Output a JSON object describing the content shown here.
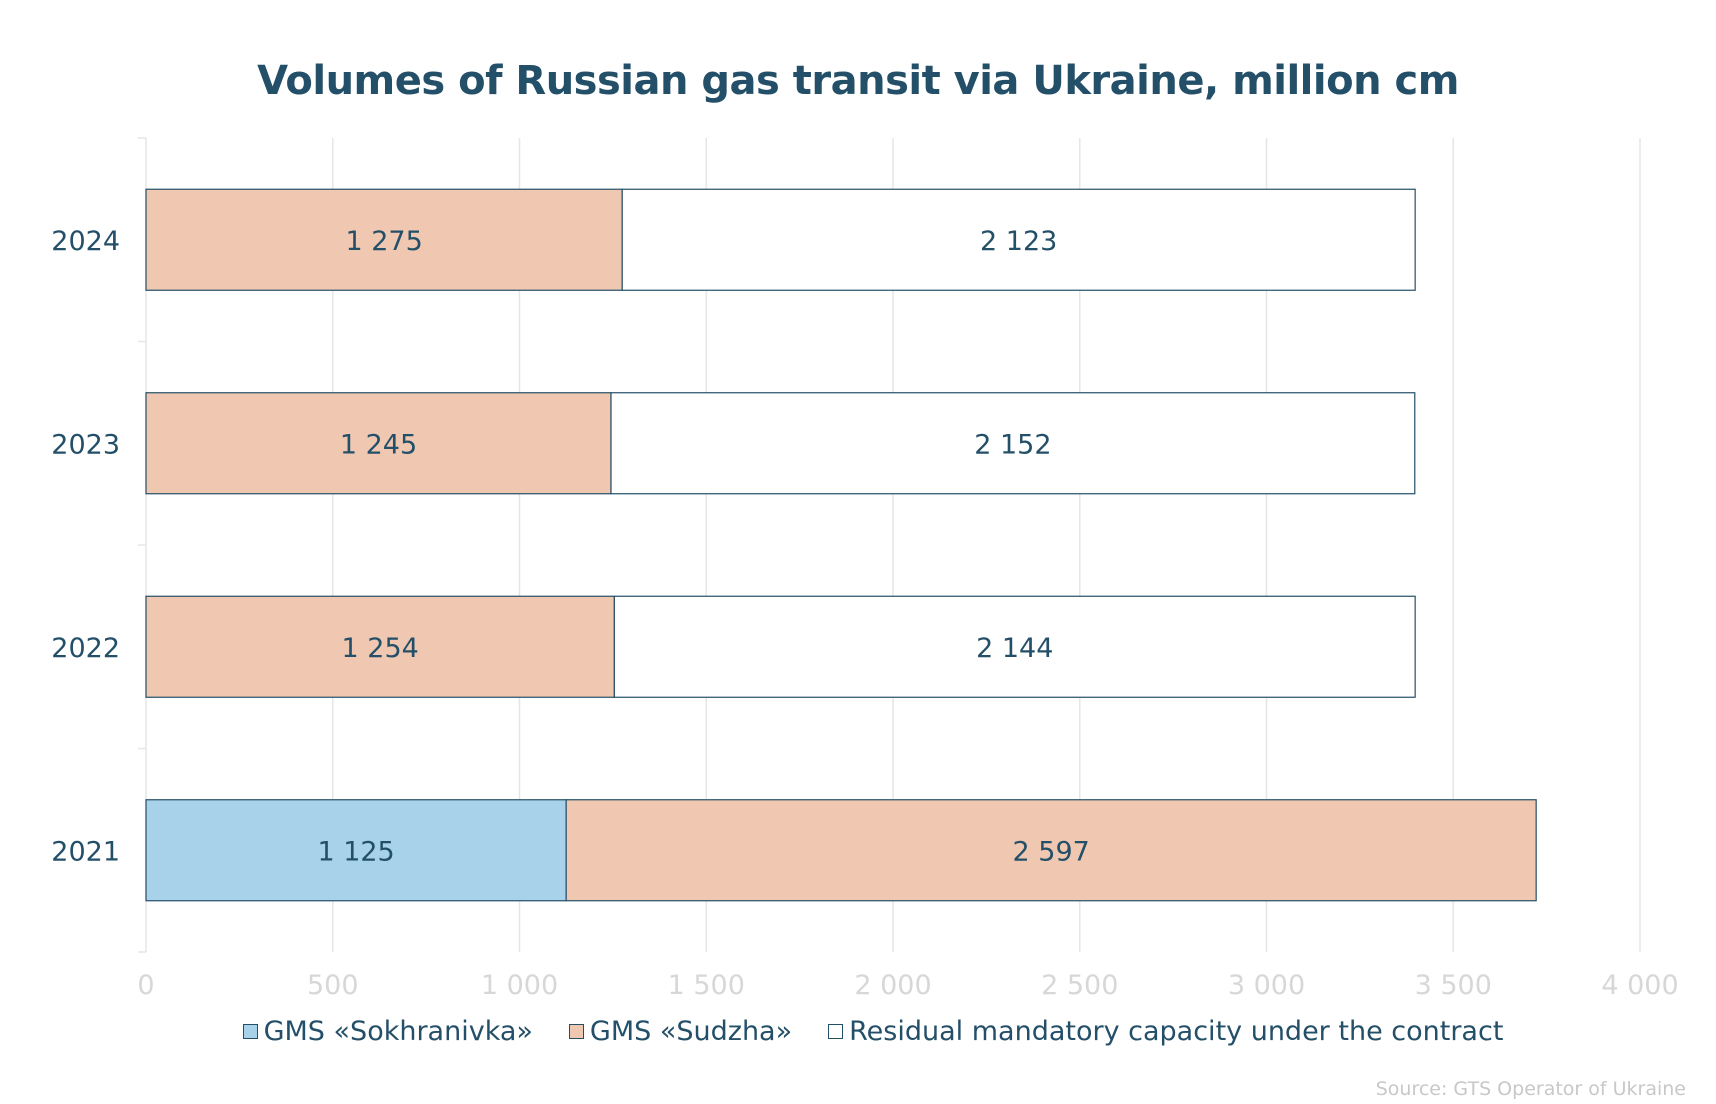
{
  "chart_data": {
    "type": "bar",
    "orientation": "horizontal",
    "stacked": true,
    "title": "Volumes of Russian gas transit via Ukraine, million cm",
    "categories": [
      "2024",
      "2023",
      "2022",
      "2021"
    ],
    "series": [
      {
        "name": "GMS «Sokhranivka»",
        "color": "#a8d1ea",
        "values": [
          0,
          0,
          0,
          1125
        ],
        "labels": [
          "",
          "",
          "",
          "1 125"
        ]
      },
      {
        "name": "GMS «Sudzha»",
        "color": "#f0c8b2",
        "values": [
          1275,
          1245,
          1254,
          2597
        ],
        "labels": [
          "1 275",
          "1 245",
          "1 254",
          "2 597"
        ]
      },
      {
        "name": "Residual mandatory capacity under the contract",
        "color": "#ffffff",
        "values": [
          2123,
          2152,
          2144,
          0
        ],
        "labels": [
          "2 123",
          "2 152",
          "2 144",
          ""
        ]
      }
    ],
    "xlim": [
      0,
      4000
    ],
    "x_ticks": [
      0,
      500,
      1000,
      1500,
      2000,
      2500,
      3000,
      3500,
      4000
    ],
    "x_tick_labels": [
      "0",
      "500",
      "1 000",
      "1 500",
      "2 000",
      "2 500",
      "3 000",
      "3 500",
      "4 000"
    ],
    "grid": true,
    "legend_position": "bottom",
    "source": "Source: GTS Operator of Ukraine",
    "bar_edge_color": "#244f68",
    "grid_color": "#e6e6e6",
    "text_color": "#244f68",
    "tick_color": "#d7d7d7"
  }
}
